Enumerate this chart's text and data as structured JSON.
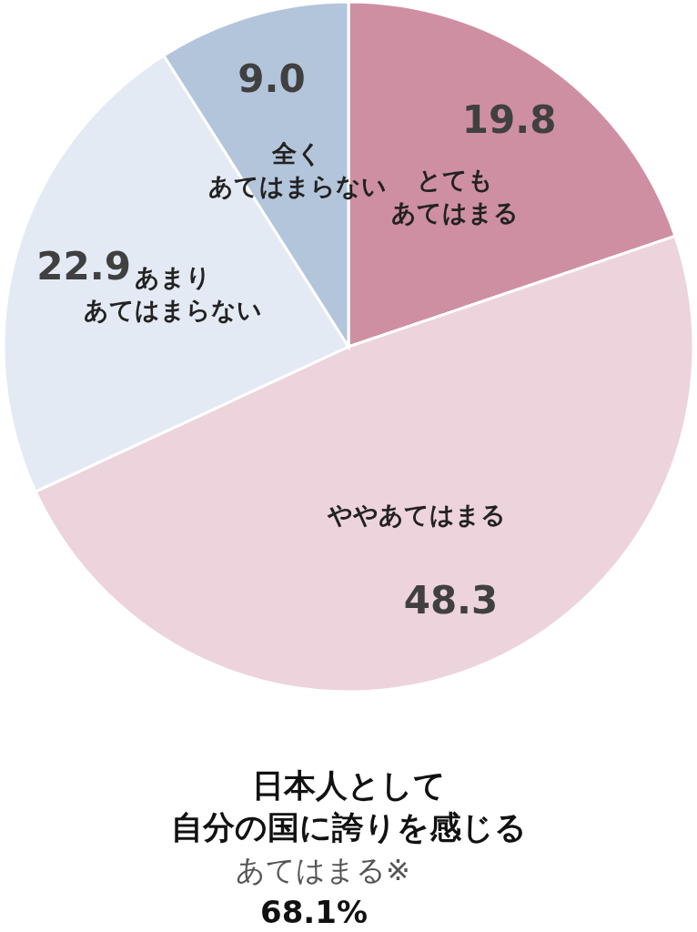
{
  "chart_data": {
    "type": "pie",
    "title": "日本人として自分の国に誇りを感じる",
    "subtitle": "あてはまる※",
    "annotations": [
      "68.1%"
    ],
    "categories": [
      "とてもあてはまる",
      "ややあてはまる",
      "あまりあてはまらない",
      "全くあてはまらない"
    ],
    "values": [
      19.8,
      48.3,
      22.9,
      9.0
    ],
    "value_labels": [
      "19.8",
      "48.3",
      "22.9",
      "9.0"
    ],
    "colors": [
      "#cf8fa3",
      "#ecd3dc",
      "#e3eaf4",
      "#b3c5da"
    ]
  }
}
